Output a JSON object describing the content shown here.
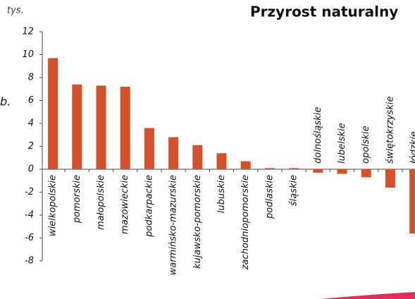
{
  "chart_data": {
    "type": "bar",
    "title": "Przyrost naturalny",
    "y_label": "tys.",
    "annotation": "b.",
    "categories": [
      "wielkopolskie",
      "pomorskie",
      "małopolskie",
      "mazowieckie",
      "podkarpackie",
      "warmińsko-mazurskie",
      "kujawsko-pomorskie",
      "lubuskie",
      "zachodniopomorskie",
      "podlaskie",
      "śląskie",
      "dolnośląskie",
      "lubelskie",
      "opolskie",
      "świętokrzyskie",
      "łódzkie"
    ],
    "values": [
      9.7,
      7.4,
      7.3,
      7.2,
      3.6,
      2.8,
      2.1,
      1.4,
      0.7,
      0.1,
      0.1,
      -0.3,
      -0.4,
      -0.7,
      -1.6,
      -5.6
    ],
    "color": "#d4502a",
    "ylim": [
      -8,
      12
    ],
    "yticks": [
      -8,
      -6,
      -4,
      -2,
      0,
      2,
      4,
      6,
      8,
      10,
      12
    ],
    "grid": false
  }
}
